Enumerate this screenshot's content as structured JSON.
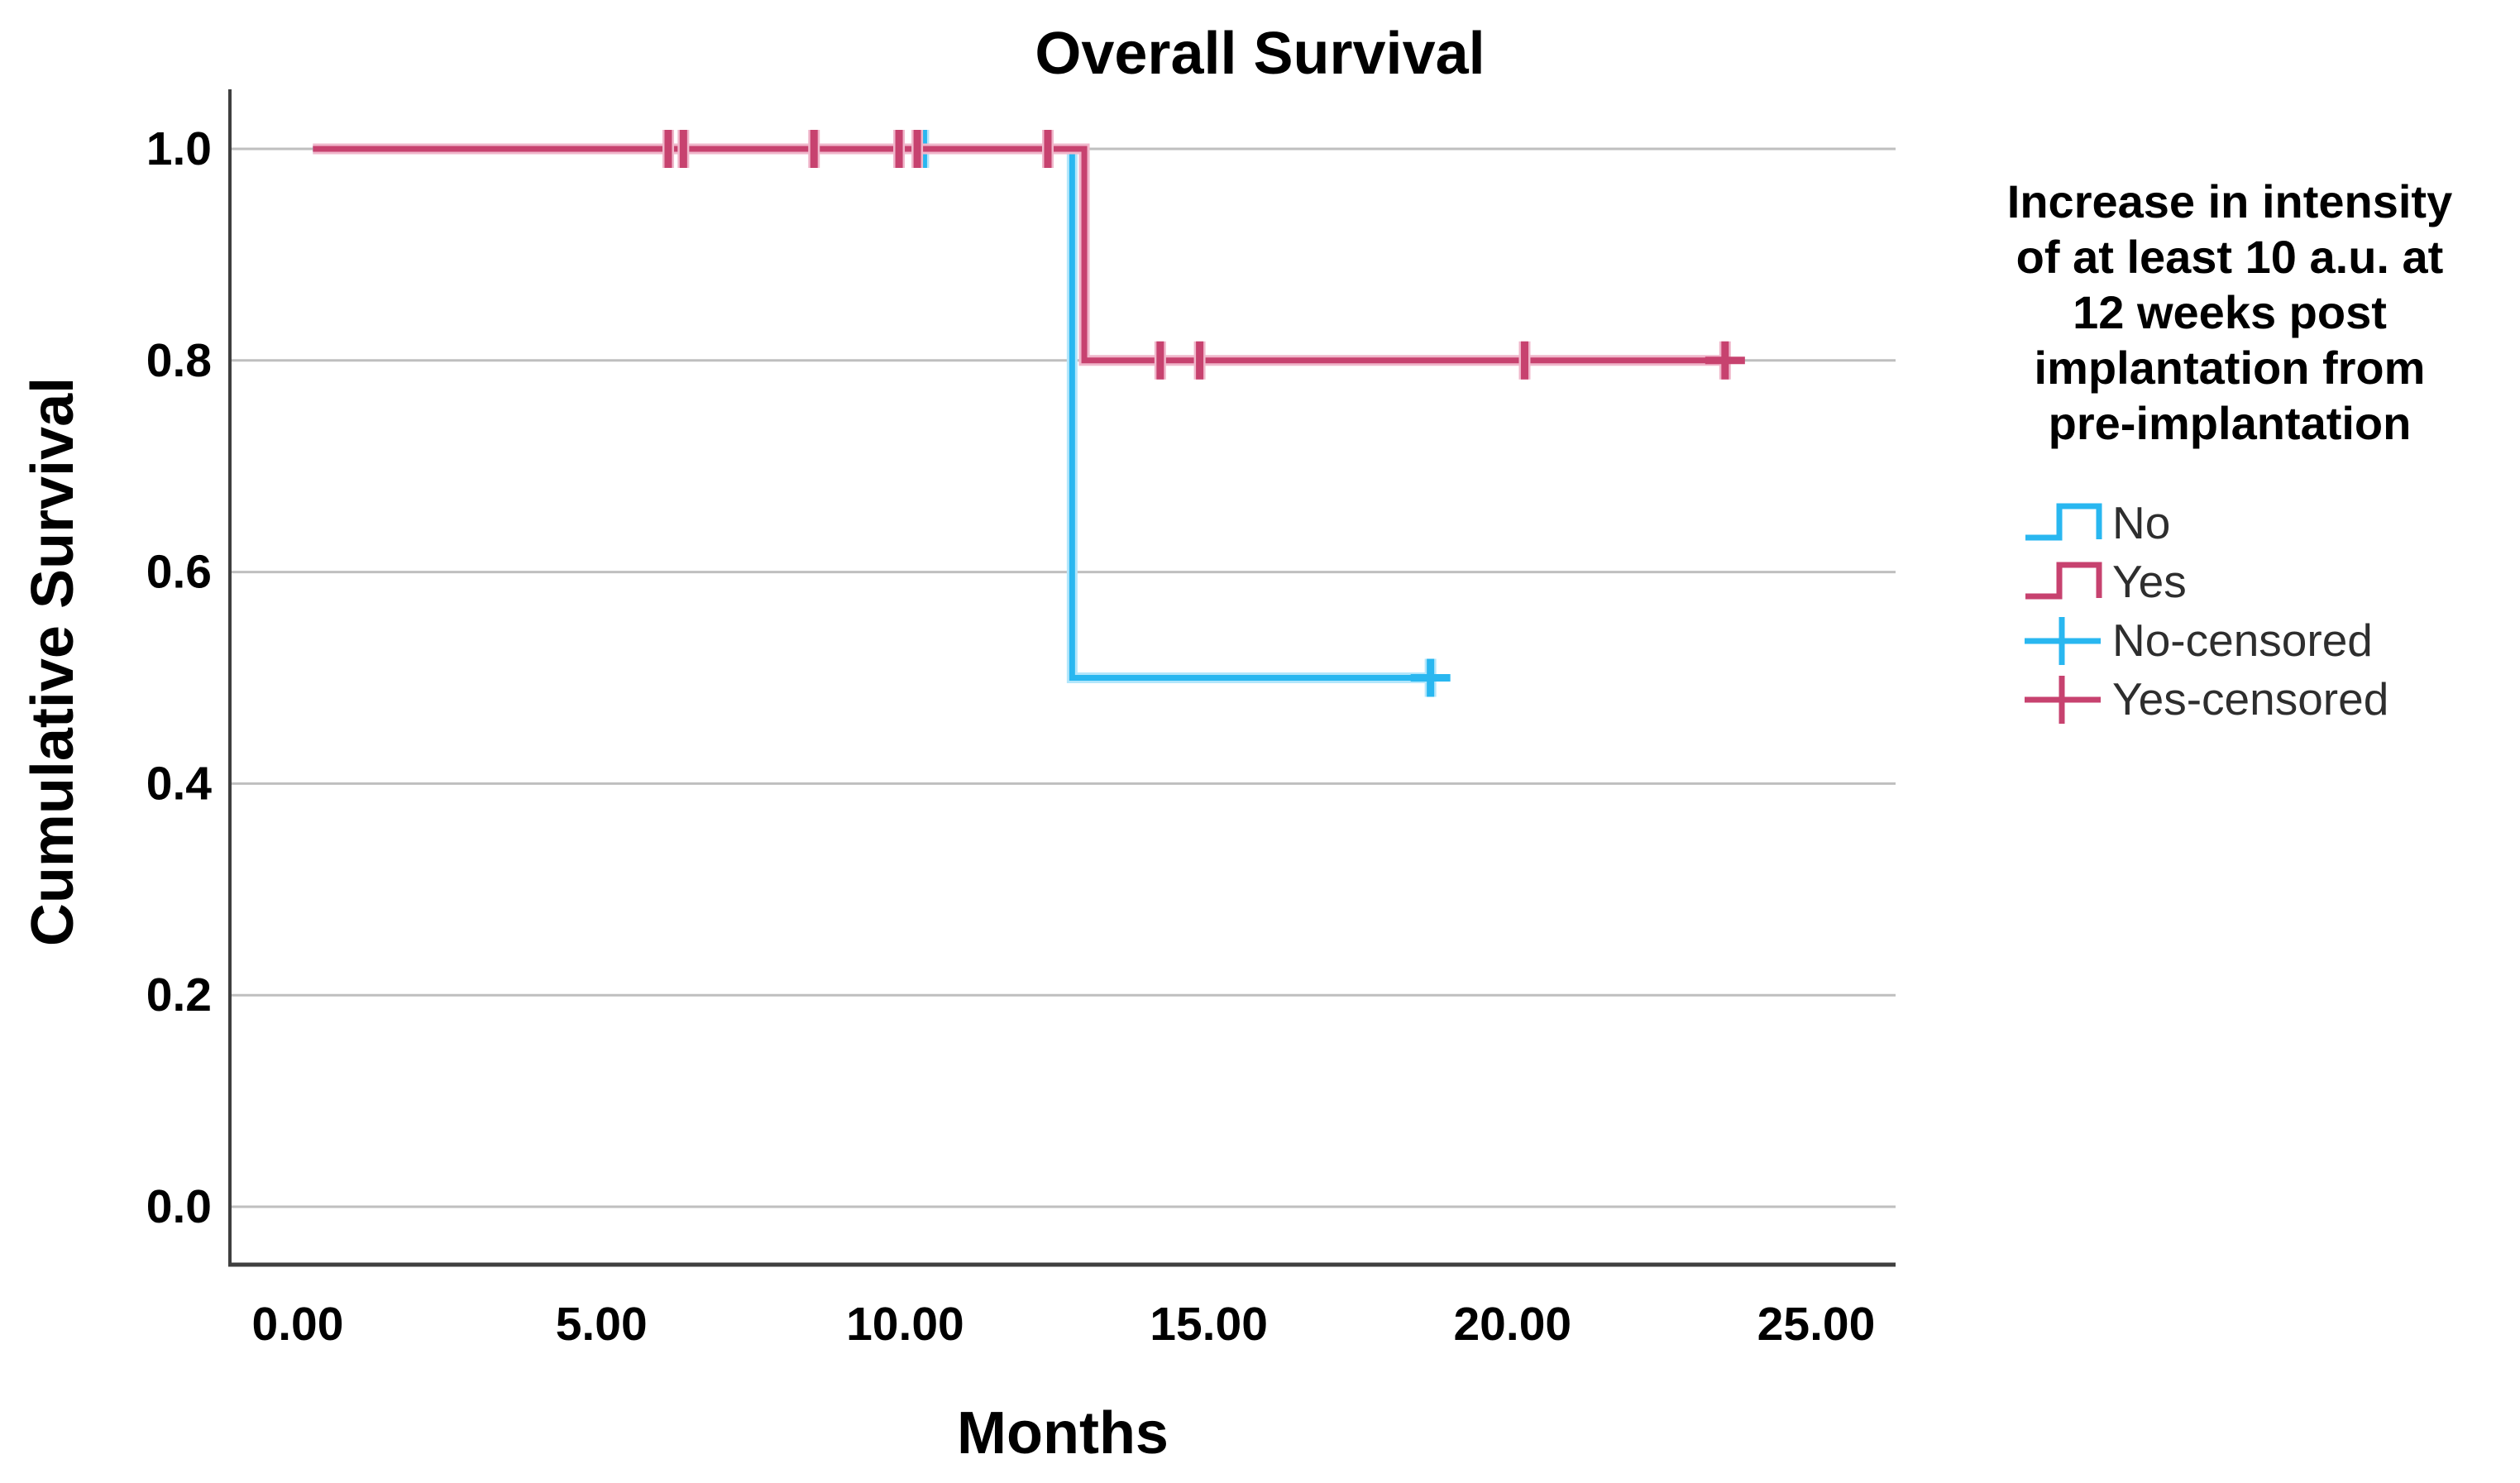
{
  "figure": {
    "title": "Overall Survival",
    "x_axis": {
      "title": "Months"
    },
    "y_axis": {
      "title": "Cumulative Survival"
    },
    "legend": {
      "title": "Increase in intensity of at least 10 a.u. at 12 weeks post implantation from pre-implantation",
      "title_lines": [
        "Increase in intensity",
        "of at least 10 a.u. at",
        "12 weeks post",
        "implantation from",
        "pre-implantation"
      ],
      "entries": [
        {
          "label": "No",
          "symbol": "step-line-symbol",
          "color": "#29b7f0",
          "halo": "#b3e6fb"
        },
        {
          "label": "Yes",
          "symbol": "step-line-symbol",
          "color": "#c7426f",
          "halo": "#f0b7cb"
        },
        {
          "label": "No-censored",
          "symbol": "censor-plus-symbol",
          "color": "#29b7f0",
          "halo": "#b3e6fb"
        },
        {
          "label": "Yes-censored",
          "symbol": "censor-plus-symbol",
          "color": "#c7426f",
          "halo": "#f0b7cb"
        }
      ]
    }
  },
  "chart_data": {
    "type": "line",
    "subtype": "kaplan_meier_step",
    "title": "Overall Survival",
    "xlabel": "Months",
    "ylabel": "Cumulative Survival",
    "xlim": [
      0,
      25
    ],
    "ylim": [
      0.0,
      1.0
    ],
    "x_ticks": [
      0,
      5,
      10,
      15,
      20,
      25
    ],
    "x_tick_labels": [
      "0.00",
      "5.00",
      "10.00",
      "15.00",
      "20.00",
      "25.00"
    ],
    "y_ticks": [
      1.0,
      0.8,
      0.6,
      0.4,
      0.2,
      0.0
    ],
    "y_tick_labels": [
      "1.0",
      "0.8",
      "0.6",
      "0.4",
      "0.2",
      "0.0"
    ],
    "grid": "horizontal",
    "grid_color": "#bfbfbf",
    "axis_color": "#3f3f3f",
    "legend_position": "right",
    "legend_title": "Increase in intensity of at least 10 a.u. at 12 weeks post implantation from pre-implantation",
    "series": [
      {
        "name": "No",
        "color": "#29b7f0",
        "halo": "#b3e6fb",
        "points": [
          [
            0.25,
            1.0
          ],
          [
            12.75,
            1.0
          ],
          [
            12.75,
            0.5
          ],
          [
            18.65,
            0.5
          ]
        ],
        "censored": [
          [
            10.3,
            1.0
          ],
          [
            18.65,
            0.5
          ]
        ]
      },
      {
        "name": "Yes",
        "color": "#c7426f",
        "halo": "#f0b7cb",
        "points": [
          [
            0.25,
            1.0
          ],
          [
            12.95,
            1.0
          ],
          [
            12.95,
            0.8
          ],
          [
            23.5,
            0.8
          ]
        ],
        "censored": [
          [
            6.1,
            1.0
          ],
          [
            6.35,
            1.0
          ],
          [
            8.5,
            1.0
          ],
          [
            9.9,
            1.0
          ],
          [
            10.2,
            1.0
          ],
          [
            12.35,
            1.0
          ],
          [
            14.2,
            0.8
          ],
          [
            14.85,
            0.8
          ],
          [
            20.2,
            0.8
          ],
          [
            23.5,
            0.8
          ]
        ]
      }
    ]
  }
}
